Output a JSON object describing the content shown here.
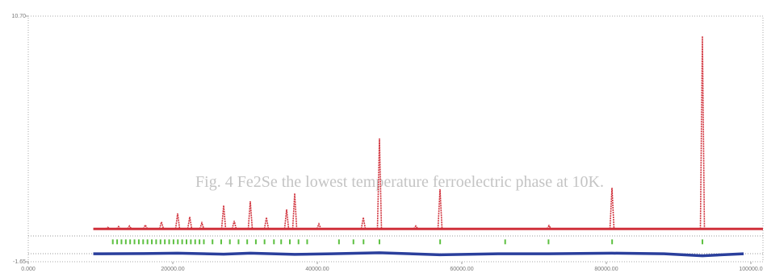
{
  "chart_data": {
    "type": "line",
    "annotation": "Fig. 4 Fe2Se the lowest temperature ferroelectric phase at 10K.",
    "xlim": [
      0,
      100000
    ],
    "xticks": [
      {
        "value": 0,
        "label": "0.000"
      },
      {
        "value": 20000,
        "label": "20000.00"
      },
      {
        "value": 40000,
        "label": "40000.00"
      },
      {
        "value": 60000,
        "label": "60000.00"
      },
      {
        "value": 80000,
        "label": "80000.00"
      },
      {
        "value": 100000,
        "label": "100000.0"
      }
    ],
    "ylim": [
      -1.65,
      10.7
    ],
    "yticks": [
      {
        "value": -1.65,
        "label": "-1.65"
      },
      {
        "value": 10.7,
        "label": "10.70"
      }
    ],
    "profile_start": 9000,
    "series": [
      {
        "color": "#d0303a",
        "x": [
          11000,
          12500,
          14000,
          16201,
          18436,
          20670,
          22346,
          24022,
          27039,
          28500,
          30726,
          32961,
          35754,
          36872,
          40223,
          46369,
          48603,
          53631,
          56983,
          72067,
          80782,
          93296
        ],
        "values": [
          0.08,
          0.12,
          0.15,
          0.2,
          0.35,
          0.78,
          0.6,
          0.3,
          1.18,
          0.4,
          1.39,
          0.58,
          0.98,
          1.79,
          0.25,
          0.58,
          4.55,
          0.15,
          2.0,
          0.17,
          2.07,
          9.69
        ]
      },
      {
        "color": "#2a3f9c",
        "x": [
          9000,
          16000,
          20670,
          27039,
          30726,
          36872,
          42000,
          48603,
          56983,
          65000,
          72000,
          80782,
          88000,
          93296,
          99000
        ],
        "values": [
          -1.25,
          -1.24,
          -1.22,
          -1.27,
          -1.22,
          -1.28,
          -1.25,
          -1.2,
          -1.3,
          -1.25,
          -1.25,
          -1.22,
          -1.25,
          -1.35,
          -1.25
        ]
      },
      {
        "color": "#5cc040",
        "x": [
          11700,
          12300,
          12900,
          13500,
          14100,
          14700,
          15300,
          15900,
          16500,
          17100,
          17700,
          18300,
          18900,
          19500,
          20100,
          20700,
          21300,
          21900,
          22500,
          23100,
          23700,
          24300,
          25500,
          26700,
          27900,
          29100,
          30300,
          31500,
          32700,
          34000,
          35000,
          36200,
          37400,
          38600,
          43000,
          45000,
          46400,
          48600,
          57000,
          66000,
          72000,
          80800,
          93300
        ],
        "values": [
          -0.65,
          -0.65,
          -0.65,
          -0.65,
          -0.65,
          -0.65,
          -0.65,
          -0.65,
          -0.65,
          -0.65,
          -0.65,
          -0.65,
          -0.65,
          -0.65,
          -0.65,
          -0.65,
          -0.65,
          -0.65,
          -0.65,
          -0.65,
          -0.65,
          -0.65,
          -0.65,
          -0.65,
          -0.65,
          -0.65,
          -0.65,
          -0.65,
          -0.65,
          -0.65,
          -0.65,
          -0.65,
          -0.65,
          -0.65,
          -0.65,
          -0.65,
          -0.65,
          -0.65,
          -0.65,
          -0.65,
          -0.65,
          -0.65,
          -0.65
        ]
      }
    ]
  }
}
